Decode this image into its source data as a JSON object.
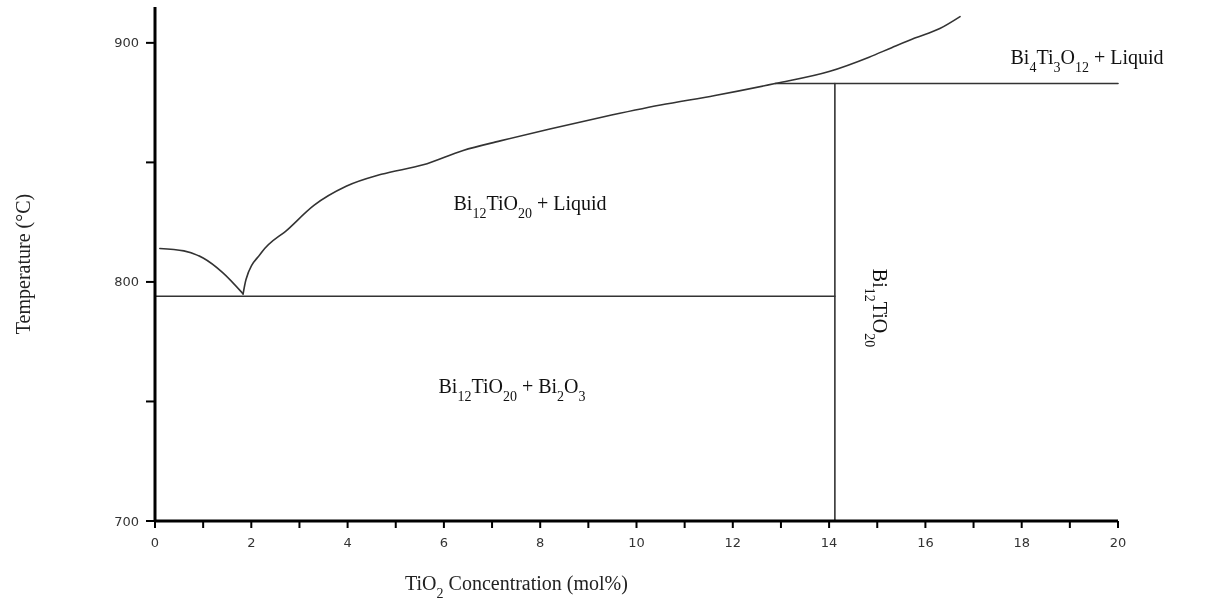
{
  "chart_data": {
    "type": "line",
    "xlabel": "TiO$_{2}$ Concentration (mol%)",
    "ylabel": "Temperature (°C)",
    "xlim": [
      0,
      20
    ],
    "ylim": [
      700,
      915
    ],
    "xticks": [
      0,
      {
        "value": 1,
        "label": null
      },
      2,
      {
        "value": 3,
        "label": null
      },
      4,
      {
        "value": 5,
        "label": null
      },
      6,
      {
        "value": 7,
        "label": null
      },
      8,
      {
        "value": 9,
        "label": null
      },
      10,
      {
        "value": 11,
        "label": null
      },
      12,
      {
        "value": 13,
        "label": null
      },
      14,
      {
        "value": 15,
        "label": null
      },
      16,
      {
        "value": 17,
        "label": null
      },
      18,
      {
        "value": 19,
        "label": null
      },
      20
    ],
    "yticks": [
      700,
      {
        "value": 750,
        "label": null
      },
      800,
      {
        "value": 850,
        "label": null
      },
      900
    ],
    "grid": false,
    "marker": "none",
    "line_style": "solid",
    "series": [
      {
        "color": "#333333",
        "x": [
          0.1,
          0.6,
          1.0,
          1.4,
          1.83
        ],
        "values": [
          814,
          813,
          810,
          804,
          795
        ]
      },
      {
        "color": "#333333",
        "x": [
          1.83,
          1.89,
          2.2,
          2.76,
          3.3,
          3.97,
          4.7,
          5.57,
          6.4,
          7.17,
          8.2,
          9.3,
          10.5,
          11.63,
          12.88,
          14.0,
          14.83,
          15.3,
          15.78,
          16.3,
          16.72
        ],
        "values": [
          795,
          801,
          812,
          822,
          832,
          840,
          845,
          849,
          855,
          859,
          864,
          869,
          874,
          878,
          883,
          888,
          894,
          898,
          902,
          906,
          911
        ]
      },
      {
        "color": "#333333",
        "x": [
          0,
          14.12
        ],
        "values": [
          794,
          794
        ]
      },
      {
        "color": "#333333",
        "x": [
          14.12,
          14.12
        ],
        "values": [
          700,
          883
        ]
      },
      {
        "color": "#333333",
        "x": [
          12.88,
          20
        ],
        "values": [
          883,
          883
        ]
      }
    ],
    "annotations": [
      "Bi$_{12}$TiO$_{20}$ + Liquid",
      "Bi$_{12}$TiO$_{20}$ + Bi$_{2}$O$_{3}$",
      "Bi$_{4}$Ti$_{3}$O$_{12}$ + Liquid",
      "Bi$_{12}$TiO$_{20}$"
    ]
  }
}
